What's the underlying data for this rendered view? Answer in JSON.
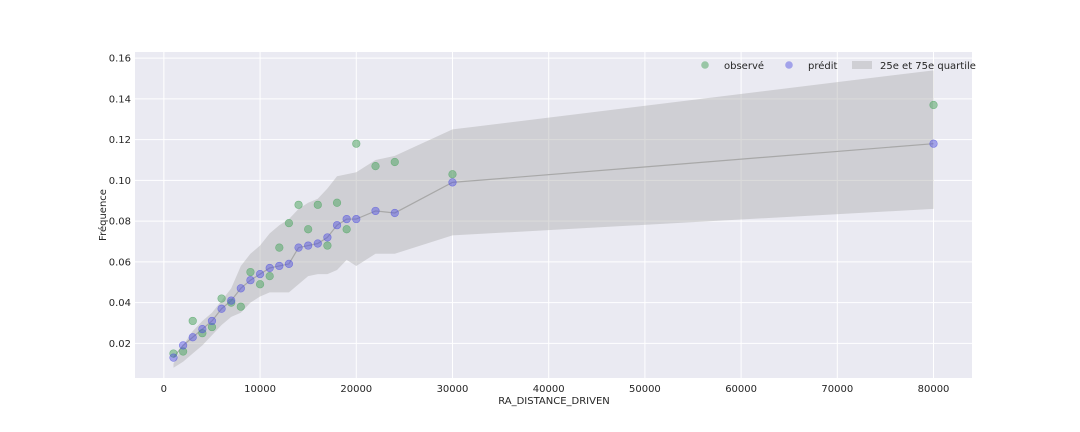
{
  "chart_data": {
    "type": "scatter",
    "xlabel": "RA_DISTANCE_DRIVEN",
    "ylabel": "Fréquence",
    "xlim": [
      -3000,
      84000
    ],
    "ylim": [
      0.003,
      0.163
    ],
    "xticks": [
      0,
      10000,
      20000,
      30000,
      40000,
      50000,
      60000,
      70000,
      80000
    ],
    "xtick_labels": [
      "0",
      "10000",
      "20000",
      "30000",
      "40000",
      "50000",
      "60000",
      "70000",
      "80000"
    ],
    "yticks": [
      0.02,
      0.04,
      0.06,
      0.08,
      0.1,
      0.12,
      0.14,
      0.16
    ],
    "ytick_labels": [
      "0.02",
      "0.04",
      "0.06",
      "0.08",
      "0.10",
      "0.12",
      "0.14",
      "0.16"
    ],
    "grid": true,
    "legend_position": "top-right",
    "colors": {
      "background": "#eaeaf2",
      "grid": "#ffffff",
      "observed": "#55a868",
      "predicted": "#4c4ce0",
      "band": "#b0b0b0",
      "line": "#a8a8a8"
    },
    "legend": {
      "observed": "observé",
      "predicted": "prédit",
      "band": "25e et 75e quartile"
    },
    "x": [
      1000,
      2000,
      3000,
      4000,
      5000,
      6000,
      7000,
      8000,
      9000,
      10000,
      11000,
      12000,
      13000,
      14000,
      15000,
      16000,
      17000,
      18000,
      19000,
      20000,
      22000,
      24000,
      30000,
      80000
    ],
    "series": [
      {
        "name": "observé",
        "values": [
          0.015,
          0.016,
          0.031,
          0.025,
          0.028,
          0.042,
          0.04,
          0.038,
          0.055,
          0.049,
          0.053,
          0.067,
          0.079,
          0.088,
          0.076,
          0.088,
          0.068,
          0.089,
          0.076,
          0.118,
          0.107,
          0.109,
          0.103,
          0.137
        ]
      },
      {
        "name": "prédit",
        "values": [
          0.013,
          0.019,
          0.023,
          0.027,
          0.031,
          0.037,
          0.041,
          0.047,
          0.051,
          0.054,
          0.057,
          0.058,
          0.059,
          0.067,
          0.068,
          0.069,
          0.072,
          0.078,
          0.081,
          0.081,
          0.085,
          0.084,
          0.099,
          0.118
        ]
      }
    ],
    "band": {
      "name": "25e et 75e quartile",
      "lower": [
        0.008,
        0.011,
        0.015,
        0.019,
        0.024,
        0.029,
        0.033,
        0.035,
        0.04,
        0.043,
        0.045,
        0.045,
        0.045,
        0.049,
        0.053,
        0.054,
        0.054,
        0.056,
        0.061,
        0.058,
        0.064,
        0.064,
        0.073,
        0.086
      ],
      "upper": [
        0.01,
        0.019,
        0.026,
        0.031,
        0.035,
        0.041,
        0.047,
        0.058,
        0.064,
        0.068,
        0.074,
        0.078,
        0.081,
        0.086,
        0.089,
        0.091,
        0.096,
        0.102,
        0.103,
        0.104,
        0.11,
        0.112,
        0.125,
        0.154
      ]
    }
  }
}
